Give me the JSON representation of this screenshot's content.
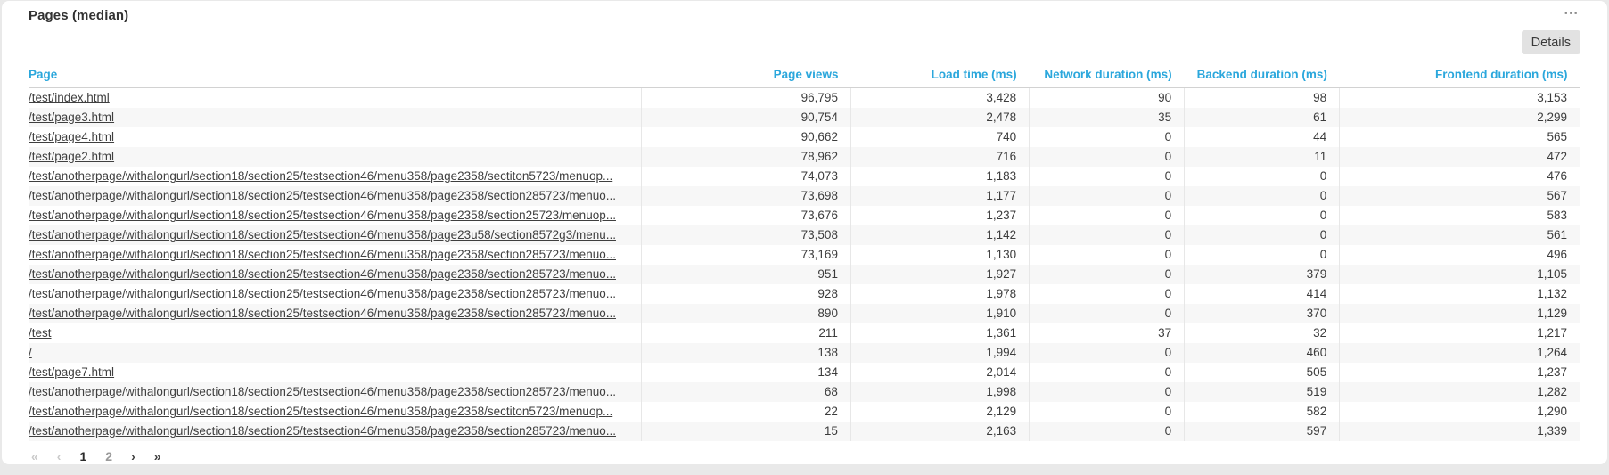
{
  "card": {
    "title": "Pages (median)",
    "overflow_menu_glyph": "∙∙∙",
    "details_button": "Details"
  },
  "table": {
    "columns": [
      {
        "label": "Page",
        "align": "left"
      },
      {
        "label": "Page views",
        "align": "right"
      },
      {
        "label": "Load time (ms)",
        "align": "right"
      },
      {
        "label": "Network duration (ms)",
        "align": "right"
      },
      {
        "label": "Backend duration (ms)",
        "align": "right"
      },
      {
        "label": "Frontend duration (ms)",
        "align": "right"
      }
    ],
    "rows": [
      {
        "page": "/test/index.html",
        "values": [
          "96,795",
          "3,428",
          "90",
          "98",
          "3,153"
        ]
      },
      {
        "page": "/test/page3.html",
        "values": [
          "90,754",
          "2,478",
          "35",
          "61",
          "2,299"
        ]
      },
      {
        "page": "/test/page4.html",
        "values": [
          "90,662",
          "740",
          "0",
          "44",
          "565"
        ]
      },
      {
        "page": "/test/page2.html",
        "values": [
          "78,962",
          "716",
          "0",
          "11",
          "472"
        ]
      },
      {
        "page": "/test/anotherpage/withalongurl/section18/section25/testsection46/menu358/page2358/sectiton5723/menuop...",
        "values": [
          "74,073",
          "1,183",
          "0",
          "0",
          "476"
        ]
      },
      {
        "page": "/test/anotherpage/withalongurl/section18/section25/testsection46/menu358/page2358/section285723/menuo...",
        "values": [
          "73,698",
          "1,177",
          "0",
          "0",
          "567"
        ]
      },
      {
        "page": "/test/anotherpage/withalongurl/section18/section25/testsection46/menu358/page2358/section25723/menuop...",
        "values": [
          "73,676",
          "1,237",
          "0",
          "0",
          "583"
        ]
      },
      {
        "page": "/test/anotherpage/withalongurl/section18/section25/testsection46/menu358/page23u58/section8572g3/menu...",
        "values": [
          "73,508",
          "1,142",
          "0",
          "0",
          "561"
        ]
      },
      {
        "page": "/test/anotherpage/withalongurl/section18/section25/testsection46/menu358/page2358/section285723/menuo...",
        "values": [
          "73,169",
          "1,130",
          "0",
          "0",
          "496"
        ]
      },
      {
        "page": "/test/anotherpage/withalongurl/section18/section25/testsection46/menu358/page2358/section285723/menuo...",
        "values": [
          "951",
          "1,927",
          "0",
          "379",
          "1,105"
        ]
      },
      {
        "page": "/test/anotherpage/withalongurl/section18/section25/testsection46/menu358/page2358/section285723/menuo...",
        "values": [
          "928",
          "1,978",
          "0",
          "414",
          "1,132"
        ]
      },
      {
        "page": "/test/anotherpage/withalongurl/section18/section25/testsection46/menu358/page2358/section285723/menuo...",
        "values": [
          "890",
          "1,910",
          "0",
          "370",
          "1,129"
        ]
      },
      {
        "page": "/test",
        "values": [
          "211",
          "1,361",
          "37",
          "32",
          "1,217"
        ]
      },
      {
        "page": "/",
        "values": [
          "138",
          "1,994",
          "0",
          "460",
          "1,264"
        ]
      },
      {
        "page": "/test/page7.html",
        "values": [
          "134",
          "2,014",
          "0",
          "505",
          "1,237"
        ]
      },
      {
        "page": "/test/anotherpage/withalongurl/section18/section25/testsection46/menu358/page2358/section285723/menuo...",
        "values": [
          "68",
          "1,998",
          "0",
          "519",
          "1,282"
        ]
      },
      {
        "page": "/test/anotherpage/withalongurl/section18/section25/testsection46/menu358/page2358/sectiton5723/menuop...",
        "values": [
          "22",
          "2,129",
          "0",
          "582",
          "1,290"
        ]
      },
      {
        "page": "/test/anotherpage/withalongurl/section18/section25/testsection46/menu358/page2358/section285723/menuo...",
        "values": [
          "15",
          "2,163",
          "0",
          "597",
          "1,339"
        ]
      }
    ]
  },
  "pagination": {
    "first": "«",
    "prev": "‹",
    "pages": [
      {
        "label": "1",
        "current": true
      },
      {
        "label": "2",
        "current": false
      }
    ],
    "next": "›",
    "last": "»",
    "first_enabled": false,
    "prev_enabled": false,
    "next_enabled": true,
    "last_enabled": true
  },
  "colors": {
    "accent": "#2ba7dc",
    "link_text": "#3f3f3f",
    "zebra_row": "#f7f7f7",
    "card_background": "#ffffff",
    "page_background": "#e9e9e9",
    "button_background": "#e2e2e2"
  }
}
